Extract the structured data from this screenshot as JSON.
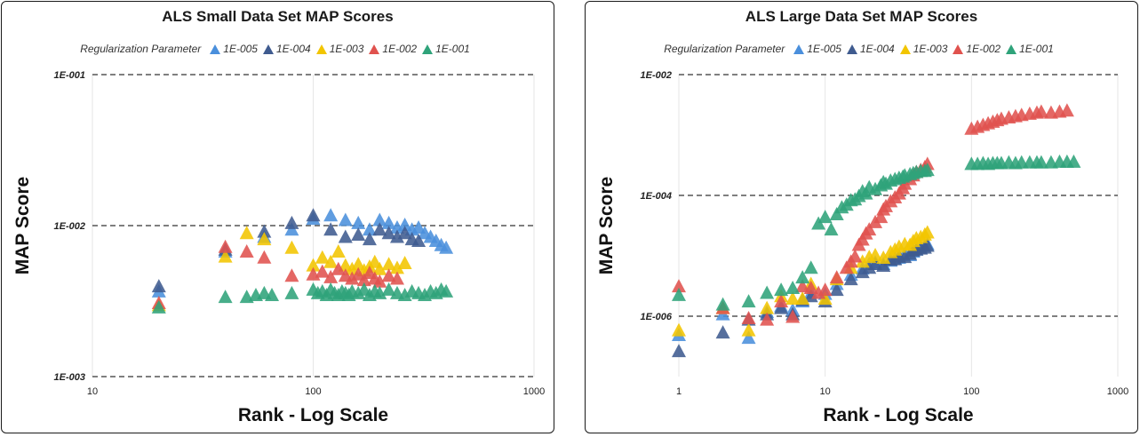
{
  "chart_data": [
    {
      "type": "scatter",
      "title": "ALS Small Data Set MAP Scores",
      "xlabel": "Rank - Log Scale",
      "ylabel": "MAP Score",
      "x_scale": "log",
      "y_scale": "log",
      "xlim": [
        10,
        1000
      ],
      "ylim": [
        0.001,
        0.1
      ],
      "x_ticks": [
        "10",
        "100",
        "1000"
      ],
      "y_ticks": [
        "1E-003",
        "1E-002",
        "1E-001"
      ],
      "grid": "horizontal dashed at major ticks, light vertical",
      "legend_title": "Regularization Parameter",
      "legend_placement": "top-center",
      "series": [
        {
          "name": "1E-005",
          "color": "#4a8fdc",
          "x": [
            20,
            40,
            60,
            80,
            100,
            120,
            140,
            160,
            180,
            200,
            220,
            240,
            260,
            280,
            300,
            320,
            340,
            360,
            380,
            400
          ],
          "y": [
            0.0037,
            0.0068,
            0.0085,
            0.0095,
            0.0112,
            0.0118,
            0.011,
            0.0105,
            0.0095,
            0.011,
            0.0105,
            0.0098,
            0.0102,
            0.0095,
            0.0098,
            0.009,
            0.0085,
            0.008,
            0.0075,
            0.0072
          ]
        },
        {
          "name": "1E-004",
          "color": "#3f5b8f",
          "x": [
            20,
            40,
            60,
            80,
            100,
            120,
            140,
            160,
            180,
            200,
            220,
            240,
            260,
            280,
            300
          ],
          "y": [
            0.004,
            0.007,
            0.0092,
            0.0105,
            0.0118,
            0.0095,
            0.0085,
            0.0088,
            0.0082,
            0.0095,
            0.009,
            0.0085,
            0.009,
            0.0082,
            0.008
          ]
        },
        {
          "name": "1E-003",
          "color": "#f2c500",
          "x": [
            20,
            40,
            50,
            60,
            80,
            100,
            110,
            120,
            130,
            140,
            150,
            160,
            170,
            180,
            190,
            200,
            220,
            240,
            260
          ],
          "y": [
            0.003,
            0.0063,
            0.009,
            0.0082,
            0.0072,
            0.0055,
            0.0062,
            0.0058,
            0.0068,
            0.0055,
            0.0052,
            0.0056,
            0.0051,
            0.0054,
            0.0058,
            0.0052,
            0.0056,
            0.0053,
            0.0057
          ]
        },
        {
          "name": "1E-002",
          "color": "#e0524e",
          "x": [
            20,
            40,
            50,
            60,
            80,
            100,
            110,
            120,
            130,
            140,
            150,
            160,
            170,
            180,
            190,
            200,
            220,
            240
          ],
          "y": [
            0.0031,
            0.0073,
            0.0068,
            0.0062,
            0.0047,
            0.0048,
            0.005,
            0.0046,
            0.0052,
            0.0047,
            0.0045,
            0.0048,
            0.0044,
            0.0049,
            0.0045,
            0.0043,
            0.0047,
            0.0045
          ]
        },
        {
          "name": "1E-001",
          "color": "#2fa37a",
          "x": [
            20,
            40,
            50,
            55,
            60,
            65,
            80,
            100,
            105,
            110,
            115,
            120,
            125,
            130,
            135,
            140,
            145,
            150,
            160,
            170,
            180,
            190,
            200,
            220,
            240,
            260,
            280,
            300,
            320,
            340,
            360,
            380,
            400
          ],
          "y": [
            0.0029,
            0.0034,
            0.0034,
            0.0035,
            0.0036,
            0.0035,
            0.0036,
            0.0038,
            0.0036,
            0.0037,
            0.0035,
            0.0038,
            0.0036,
            0.0035,
            0.0037,
            0.0036,
            0.0035,
            0.0037,
            0.0036,
            0.0038,
            0.0035,
            0.0037,
            0.0036,
            0.0038,
            0.0036,
            0.0035,
            0.0037,
            0.0036,
            0.0035,
            0.0037,
            0.0036,
            0.0038,
            0.0037
          ]
        }
      ]
    },
    {
      "type": "scatter",
      "title": "ALS Large Data Set MAP Scores",
      "xlabel": "Rank - Log Scale",
      "ylabel": "MAP Score",
      "x_scale": "log",
      "y_scale": "log",
      "xlim": [
        1,
        1000
      ],
      "ylim": [
        1e-07,
        0.01
      ],
      "x_ticks": [
        "1",
        "10",
        "100",
        "1000"
      ],
      "y_ticks": [
        "1E-006",
        "1E-004",
        "1E-002"
      ],
      "grid": "horizontal dashed at labeled ticks, light vertical",
      "legend_title": "Regularization Parameter",
      "legend_placement": "top-center",
      "series": [
        {
          "name": "1E-005",
          "color": "#4a8fdc",
          "x": [
            1,
            2,
            3,
            4,
            5,
            6,
            7,
            8,
            10,
            12,
            15,
            18,
            20,
            22,
            25,
            28,
            30,
            32,
            35,
            38,
            40,
            42,
            45,
            48,
            50
          ],
          "y": [
            5e-07,
            1.1e-06,
            4.5e-07,
            1.2e-06,
            1.5e-06,
            1.3e-06,
            1.8e-06,
            2.5e-06,
            2.4e-06,
            3.5e-06,
            5e-06,
            6.3e-06,
            7.5e-06,
            8e-06,
            7.5e-06,
            8.5e-06,
            9.2e-06,
            9.5e-06,
            1.1e-05,
            1.05e-05,
            1.2e-05,
            1.3e-05,
            1.4e-05,
            1.5e-05,
            1.6e-05
          ]
        },
        {
          "name": "1E-004",
          "color": "#3f5b8f",
          "x": [
            1,
            2,
            3,
            4,
            5,
            6,
            7,
            8,
            10,
            12,
            15,
            18,
            20,
            22,
            25,
            28,
            30,
            32,
            35,
            38,
            40,
            42,
            45,
            48,
            50
          ],
          "y": [
            2.7e-07,
            5.5e-07,
            9e-07,
            1.1e-06,
            1.4e-06,
            1.1e-06,
            1.9e-06,
            2.2e-06,
            1.8e-06,
            2.8e-06,
            4.2e-06,
            5.5e-06,
            6.5e-06,
            7.5e-06,
            7e-06,
            8.8e-06,
            9e-06,
            1e-05,
            9.8e-06,
            1.1e-05,
            1.25e-05,
            1.3e-05,
            1.35e-05,
            1.4e-05,
            1.5e-05
          ]
        },
        {
          "name": "1E-003",
          "color": "#f2c500",
          "x": [
            1,
            2,
            3,
            4,
            5,
            6,
            7,
            8,
            10,
            12,
            15,
            18,
            20,
            22,
            25,
            28,
            30,
            32,
            35,
            38,
            40,
            42,
            45,
            48,
            50
          ],
          "y": [
            6e-07,
            1.4e-06,
            6e-07,
            1.4e-06,
            2.2e-06,
            2e-06,
            2e-06,
            3.5e-06,
            2e-06,
            4.2e-06,
            6.5e-06,
            8.2e-06,
            9.8e-06,
            1.05e-05,
            9.5e-06,
            1.18e-05,
            1.3e-05,
            1.45e-05,
            1.6e-05,
            1.55e-05,
            1.8e-05,
            2e-05,
            2.1e-05,
            2.3e-05,
            2.5e-05
          ]
        },
        {
          "name": "1E-002",
          "color": "#e0524e",
          "x": [
            1,
            2,
            3,
            4,
            5,
            6,
            7,
            8,
            9,
            10,
            12,
            14,
            15,
            16,
            17,
            18,
            19,
            20,
            22,
            24,
            25,
            26,
            28,
            30,
            32,
            34,
            35,
            38,
            40,
            42,
            45,
            48,
            50,
            100,
            110,
            120,
            130,
            140,
            150,
            160,
            180,
            200,
            220,
            250,
            280,
            300,
            350,
            400,
            450
          ],
          "y": [
            3.2e-06,
            1.4e-06,
            9.5e-07,
            9e-07,
            1.8e-06,
            1e-06,
            3.2e-06,
            3e-06,
            2.5e-06,
            2.8e-06,
            4.5e-06,
            6.5e-06,
            8.2e-06,
            1e-05,
            1.55e-05,
            1.9e-05,
            2.4e-05,
            2.8e-05,
            3.7e-05,
            4.5e-05,
            6e-05,
            6.8e-05,
            8.2e-05,
            9.5e-05,
            0.00011,
            0.000135,
            0.00016,
            0.00019,
            0.00022,
            0.00025,
            0.00027,
            0.0003,
            0.00034,
            0.0013,
            0.0014,
            0.0015,
            0.0016,
            0.0017,
            0.0018,
            0.0019,
            0.002,
            0.0021,
            0.0022,
            0.0023,
            0.0024,
            0.0025,
            0.0024,
            0.0025,
            0.0026
          ]
        },
        {
          "name": "1E-001",
          "color": "#2fa37a",
          "x": [
            1,
            2,
            3,
            4,
            5,
            6,
            7,
            8,
            9,
            10,
            11,
            12,
            13,
            14,
            15,
            16,
            17,
            18,
            19,
            20,
            22,
            24,
            25,
            26,
            28,
            30,
            32,
            34,
            35,
            38,
            40,
            42,
            45,
            48,
            50,
            100,
            110,
            120,
            130,
            140,
            150,
            160,
            180,
            200,
            220,
            250,
            280,
            300,
            350,
            400,
            450,
            500
          ],
          "y": [
            2.3e-06,
            1.6e-06,
            1.8e-06,
            2.5e-06,
            2.8e-06,
            3e-06,
            4.5e-06,
            6.5e-06,
            3.5e-05,
            4.5e-05,
            2.8e-05,
            5e-05,
            6.5e-05,
            7.2e-05,
            8.5e-05,
            8.8e-05,
            0.0001,
            0.00012,
            0.00011,
            0.00014,
            0.00013,
            0.00015,
            0.00017,
            0.00016,
            0.00018,
            0.00019,
            0.0002,
            0.00021,
            0.00022,
            0.00023,
            0.00024,
            0.00025,
            0.00026,
            0.00026,
            0.00027,
            0.00034,
            0.00034,
            0.00035,
            0.00034,
            0.00035,
            0.00035,
            0.00035,
            0.00036,
            0.00035,
            0.00036,
            0.00036,
            0.00036,
            0.00036,
            0.00036,
            0.00037,
            0.00037,
            0.00037
          ]
        }
      ]
    }
  ]
}
